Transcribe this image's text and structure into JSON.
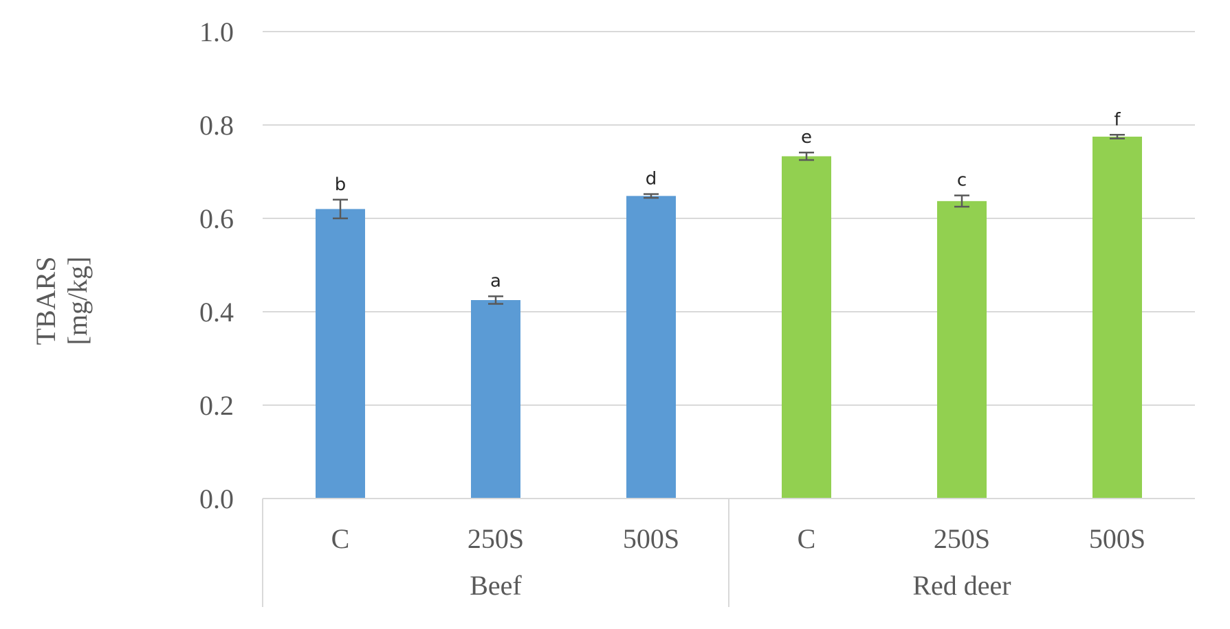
{
  "chart_data": {
    "type": "bar",
    "title": "",
    "ylabel_lines": [
      "TBARS",
      "[mg/kg]"
    ],
    "xlabel": "",
    "ylim": [
      0,
      1.0
    ],
    "yticks": [
      0.0,
      0.2,
      0.4,
      0.6,
      0.8,
      1.0
    ],
    "ytick_labels": [
      "0.0",
      "0.2",
      "0.4",
      "0.6",
      "0.8",
      "1.0"
    ],
    "grid": true,
    "groups": [
      {
        "name": "Beef",
        "color": "#5b9bd5",
        "bars": [
          {
            "category": "C",
            "value": 0.62,
            "error": 0.02,
            "letter": "b"
          },
          {
            "category": "250S",
            "value": 0.425,
            "error": 0.008,
            "letter": "a"
          },
          {
            "category": "500S",
            "value": 0.648,
            "error": 0.004,
            "letter": "d"
          }
        ]
      },
      {
        "name": "Red deer",
        "color": "#92d050",
        "bars": [
          {
            "category": "C",
            "value": 0.733,
            "error": 0.008,
            "letter": "e"
          },
          {
            "category": "250S",
            "value": 0.637,
            "error": 0.012,
            "letter": "c"
          },
          {
            "category": "500S",
            "value": 0.775,
            "error": 0.004,
            "letter": "f"
          }
        ]
      }
    ]
  }
}
